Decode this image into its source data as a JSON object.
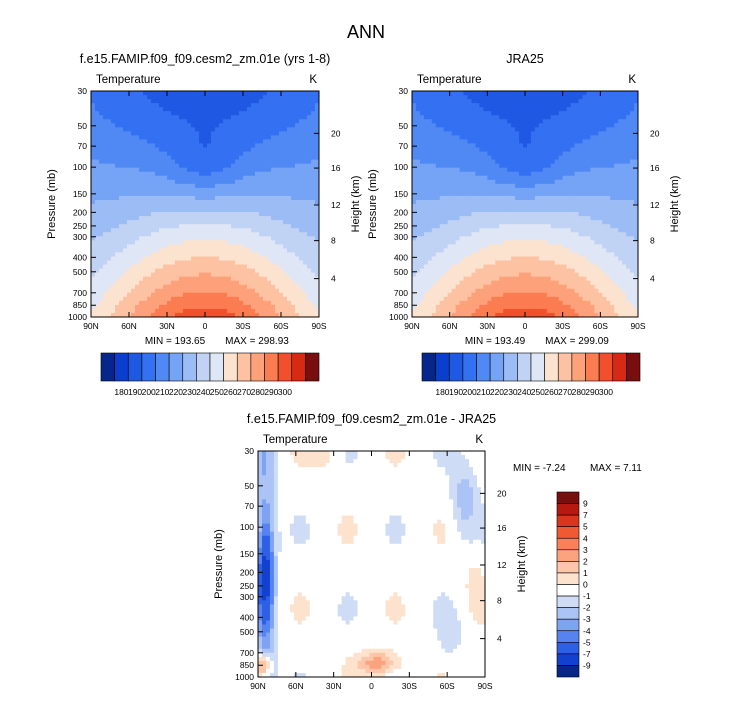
{
  "figure": {
    "title": "ANN"
  },
  "chart_data": [
    {
      "type": "heatmap",
      "title": "f.e15.FAMIP.f09_f09.cesm2_zm.01e (yrs 1-8)",
      "variable_label": "Temperature",
      "units_label": "K",
      "xlabel": "",
      "ylabel": "Pressure (mb)",
      "y2label": "Height (km)",
      "x_ticks": [
        "90N",
        "60N",
        "30N",
        "0",
        "30S",
        "60S",
        "90S"
      ],
      "y_ticks": [
        "30",
        "50",
        "70",
        "100",
        "150",
        "200",
        "250",
        "300",
        "400",
        "500",
        "700",
        "850",
        "1000"
      ],
      "y2_ticks": [
        "20",
        "16",
        "12",
        "8",
        "4"
      ],
      "min_label": "MIN = 193.65",
      "max_label": "MAX = 298.93",
      "colorbar_orientation": "horizontal",
      "colorbar_tick_labels": [
        "180",
        "190",
        "200",
        "210",
        "220",
        "230",
        "240",
        "250",
        "260",
        "270",
        "280",
        "290",
        "300"
      ],
      "colorbar_colors": [
        "#05278c",
        "#0b3ecf",
        "#1f58e3",
        "#3370f2",
        "#5089f4",
        "#75a3f5",
        "#9bbcf5",
        "#c0d3f4",
        "#dfe6f5",
        "#fbe3cf",
        "#fcc2a2",
        "#fca17a",
        "#fb7c51",
        "#f24f2c",
        "#d62a14",
        "#7a0d0d"
      ],
      "model": "abs"
    },
    {
      "type": "heatmap",
      "title": "JRA25",
      "variable_label": "Temperature",
      "units_label": "K",
      "xlabel": "",
      "ylabel": "Pressure (mb)",
      "y2label": "Height (km)",
      "x_ticks": [
        "90N",
        "60N",
        "30N",
        "0",
        "30S",
        "60S",
        "90S"
      ],
      "y_ticks": [
        "30",
        "50",
        "70",
        "100",
        "150",
        "200",
        "250",
        "300",
        "400",
        "500",
        "700",
        "850",
        "1000"
      ],
      "y2_ticks": [
        "20",
        "16",
        "12",
        "8",
        "4"
      ],
      "min_label": "MIN = 193.49",
      "max_label": "MAX = 299.09",
      "colorbar_orientation": "horizontal",
      "colorbar_tick_labels": [
        "180",
        "190",
        "200",
        "210",
        "220",
        "230",
        "240",
        "250",
        "260",
        "270",
        "280",
        "290",
        "300"
      ],
      "colorbar_colors": [
        "#05278c",
        "#0b3ecf",
        "#1f58e3",
        "#3370f2",
        "#5089f4",
        "#75a3f5",
        "#9bbcf5",
        "#c0d3f4",
        "#dfe6f5",
        "#fbe3cf",
        "#fcc2a2",
        "#fca17a",
        "#fb7c51",
        "#f24f2c",
        "#d62a14",
        "#7a0d0d"
      ],
      "model": "abs"
    },
    {
      "type": "heatmap",
      "title": "f.e15.FAMIP.f09_f09.cesm2_zm.01e - JRA25",
      "variable_label": "Temperature",
      "units_label": "K",
      "xlabel": "",
      "ylabel": "Pressure (mb)",
      "y2label": "Height (km)",
      "x_ticks": [
        "90N",
        "60N",
        "30N",
        "0",
        "30S",
        "60S",
        "90S"
      ],
      "y_ticks": [
        "30",
        "50",
        "70",
        "100",
        "150",
        "200",
        "250",
        "300",
        "400",
        "500",
        "700",
        "850",
        "1000"
      ],
      "y2_ticks": [
        "20",
        "16",
        "12",
        "8",
        "4"
      ],
      "min_label": "MIN =  -7.24",
      "max_label": "MAX =  7.11",
      "colorbar_orientation": "vertical",
      "colorbar_tick_labels": [
        "9",
        "7",
        "5",
        "4",
        "3",
        "2",
        "1",
        "0",
        "-1",
        "-2",
        "-3",
        "-4",
        "-5",
        "-7",
        "-9"
      ],
      "colorbar_colors": [
        "#7a0d0d",
        "#b5190f",
        "#d9361b",
        "#ef5a33",
        "#f98059",
        "#fba37f",
        "#fdc6a8",
        "#fde2cd",
        "#ffffff",
        "#cfdcf6",
        "#abc3f5",
        "#7ea3f3",
        "#5683ef",
        "#2e60e6",
        "#1340cf",
        "#05278c"
      ],
      "model": "diff"
    }
  ]
}
